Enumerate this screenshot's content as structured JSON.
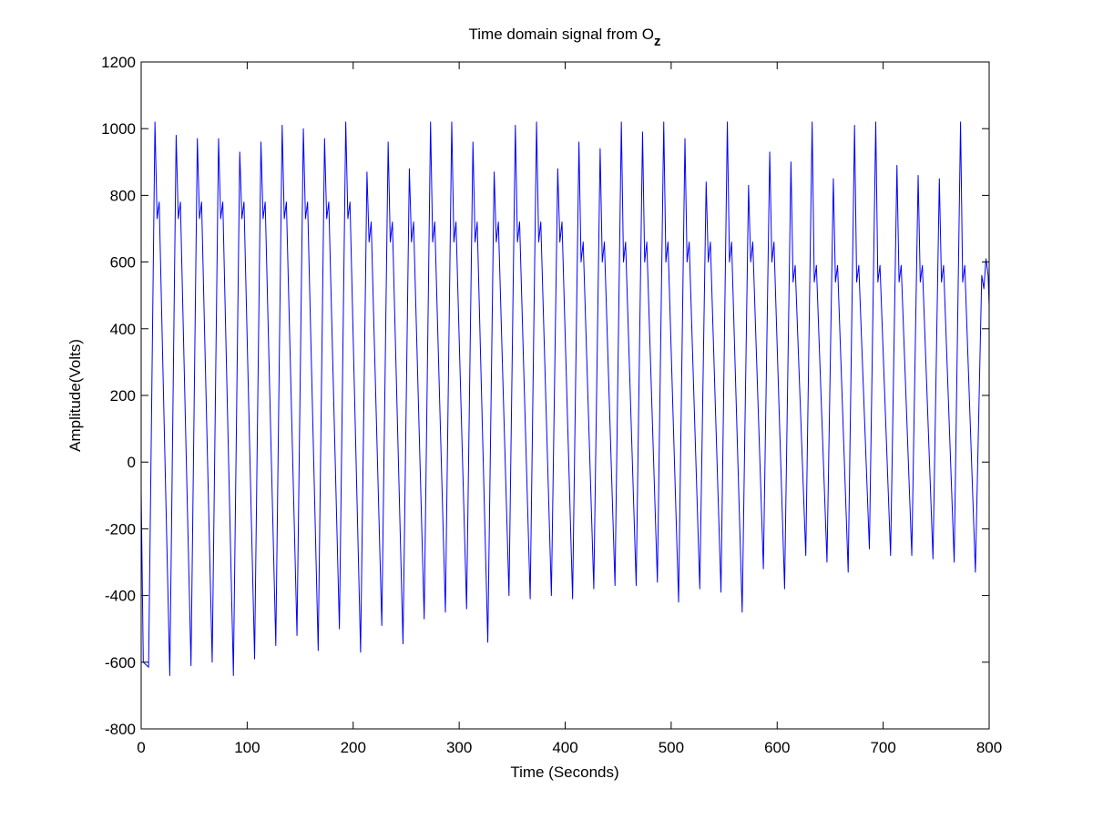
{
  "chart_data": {
    "type": "line",
    "title": "Time domain signal from O",
    "title_subscript": "z",
    "x_label": "Time (Seconds)",
    "y_label": "Amplitude(Volts)",
    "color": "#0000ff",
    "xlim": [
      0,
      800
    ],
    "ylim": [
      -800,
      1200
    ],
    "xticks": [
      0,
      100,
      200,
      300,
      400,
      500,
      600,
      700,
      800
    ],
    "yticks": [
      -800,
      -600,
      -400,
      -200,
      0,
      200,
      400,
      600,
      800,
      1000,
      1200
    ],
    "x": [
      0,
      2,
      7,
      13,
      15,
      17,
      27,
      33,
      35,
      37,
      47,
      53,
      55,
      57,
      67,
      73,
      75,
      77,
      87,
      93,
      95,
      97,
      107,
      113,
      115,
      117,
      127,
      133,
      135,
      137,
      147,
      153,
      155,
      157,
      167,
      173,
      175,
      177,
      187,
      193,
      195,
      197,
      207,
      213,
      215,
      217,
      227,
      233,
      235,
      237,
      247,
      253,
      255,
      257,
      267,
      273,
      275,
      277,
      287,
      293,
      295,
      297,
      307,
      313,
      315,
      317,
      327,
      333,
      335,
      337,
      347,
      353,
      355,
      357,
      367,
      373,
      375,
      377,
      387,
      393,
      395,
      397,
      407,
      413,
      415,
      417,
      427,
      433,
      435,
      437,
      447,
      453,
      455,
      457,
      467,
      473,
      475,
      477,
      487,
      493,
      495,
      497,
      507,
      513,
      515,
      517,
      527,
      533,
      535,
      537,
      547,
      553,
      555,
      557,
      567,
      573,
      575,
      577,
      587,
      593,
      595,
      597,
      607,
      613,
      615,
      617,
      627,
      633,
      635,
      637,
      647,
      653,
      655,
      657,
      667,
      673,
      675,
      677,
      687,
      693,
      695,
      697,
      707,
      713,
      715,
      717,
      727,
      733,
      735,
      737,
      747,
      753,
      755,
      757,
      767,
      773,
      775,
      777,
      787,
      793,
      795,
      797,
      799,
      800
    ],
    "values": [
      -90,
      -600,
      -615,
      1020,
      730,
      780,
      -640,
      980,
      730,
      780,
      -610,
      970,
      730,
      780,
      -600,
      970,
      730,
      780,
      -640,
      930,
      730,
      780,
      -590,
      960,
      730,
      780,
      -550,
      1010,
      730,
      780,
      -520,
      1000,
      730,
      780,
      -565,
      970,
      730,
      780,
      -500,
      1020,
      730,
      780,
      -570,
      870,
      660,
      720,
      -490,
      960,
      660,
      720,
      -545,
      880,
      660,
      720,
      -470,
      1020,
      660,
      720,
      -450,
      1020,
      660,
      720,
      -440,
      960,
      660,
      720,
      -540,
      870,
      660,
      720,
      -400,
      1010,
      660,
      720,
      -410,
      1020,
      660,
      720,
      -400,
      880,
      660,
      720,
      -410,
      960,
      600,
      660,
      -380,
      940,
      600,
      660,
      -370,
      1020,
      600,
      660,
      -370,
      990,
      600,
      660,
      -360,
      1020,
      600,
      660,
      -420,
      970,
      600,
      660,
      -380,
      840,
      600,
      660,
      -390,
      1020,
      600,
      660,
      -450,
      830,
      600,
      660,
      -320,
      930,
      600,
      660,
      -380,
      900,
      540,
      590,
      -280,
      1020,
      540,
      590,
      -300,
      850,
      540,
      590,
      -330,
      1010,
      540,
      590,
      -260,
      1020,
      540,
      590,
      -280,
      890,
      540,
      590,
      -280,
      860,
      540,
      590,
      -290,
      850,
      540,
      590,
      -300,
      1020,
      540,
      590,
      -330,
      560,
      520,
      610,
      560,
      470
    ]
  }
}
